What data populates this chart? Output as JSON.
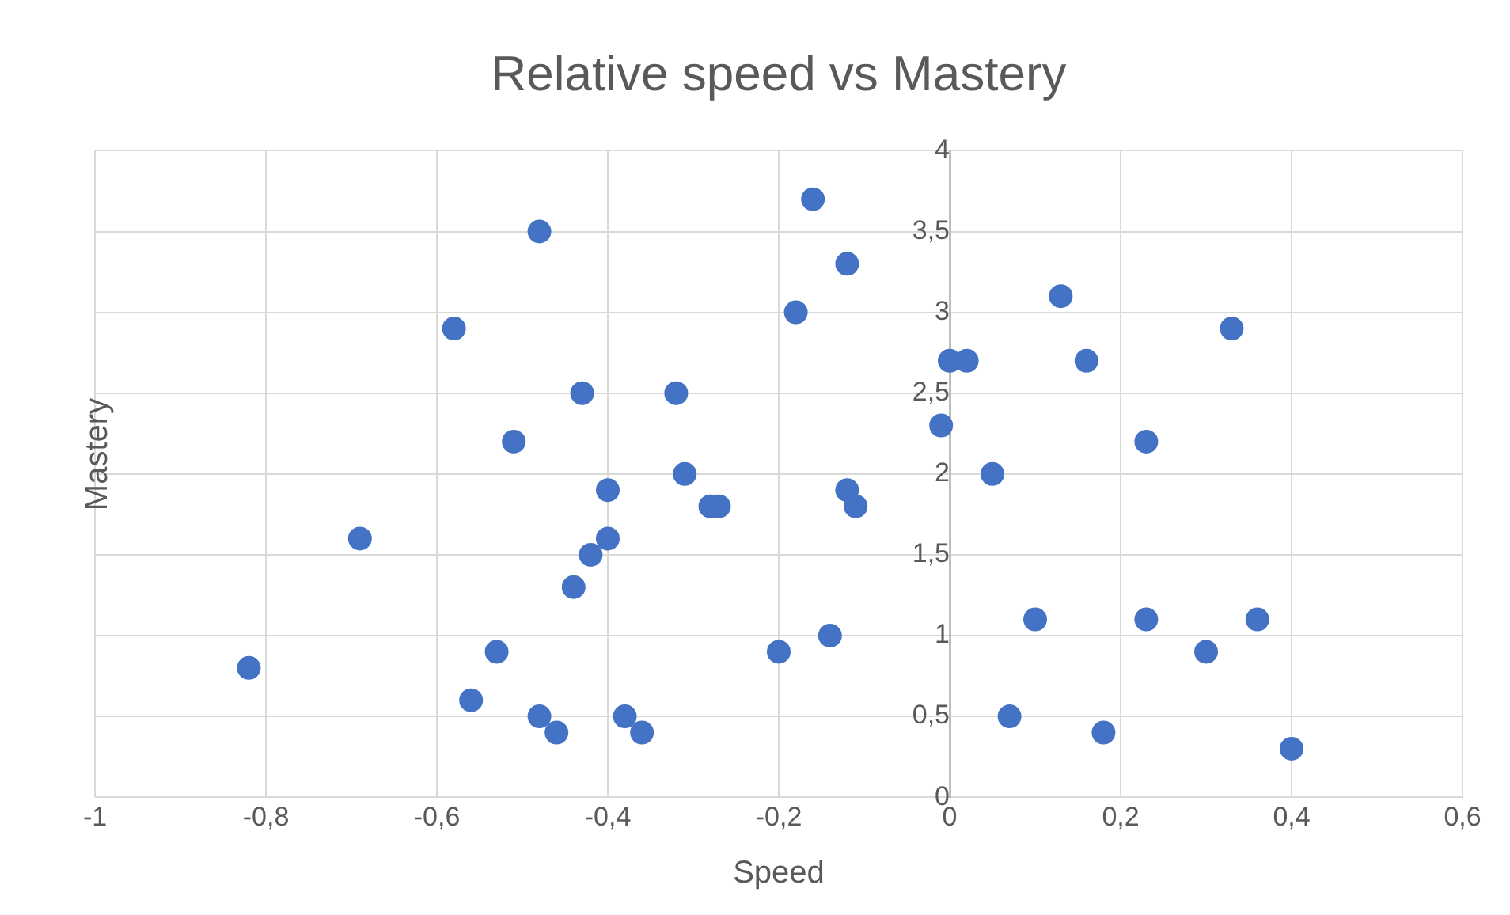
{
  "chart_data": {
    "type": "scatter",
    "title": "Relative speed vs Mastery",
    "xlabel": "Speed",
    "ylabel": "Mastery",
    "x": [
      -0.82,
      -0.69,
      -0.58,
      -0.48,
      -0.51,
      -0.56,
      -0.53,
      -0.48,
      -0.46,
      -0.44,
      -0.43,
      -0.42,
      -0.4,
      -0.4,
      -0.38,
      -0.36,
      -0.32,
      -0.31,
      -0.28,
      -0.27,
      -0.2,
      -0.18,
      -0.16,
      -0.14,
      -0.12,
      -0.12,
      -0.11,
      -0.01,
      0,
      0.02,
      0.05,
      0.07,
      0.1,
      0.13,
      0.16,
      0.18,
      0.23,
      0.23,
      0.3,
      0.33,
      0.36,
      0.4
    ],
    "series": [
      {
        "color": "#4472c4",
        "values": [
          0.8,
          1.6,
          2.9,
          3.5,
          2.2,
          0.6,
          0.9,
          0.5,
          0.4,
          1.3,
          2.5,
          1.5,
          1.9,
          1.6,
          0.5,
          0.4,
          2.5,
          2.0,
          1.8,
          1.8,
          0.9,
          3.0,
          3.7,
          1.0,
          3.3,
          1.9,
          1.8,
          2.3,
          2.7,
          2.7,
          2.0,
          0.5,
          1.1,
          3.1,
          2.7,
          0.4,
          2.2,
          1.1,
          0.9,
          2.9,
          1.1,
          0.3
        ]
      }
    ],
    "xlim": [
      -1,
      0.6
    ],
    "xticks": [
      -1,
      {
        "value": -0.8,
        "label": "-0,8"
      },
      {
        "value": -0.6,
        "label": "-0,6"
      },
      {
        "value": -0.4,
        "label": "-0,4"
      },
      {
        "value": -0.2,
        "label": "-0,2"
      },
      0,
      {
        "value": 0.2,
        "label": "0,2"
      },
      {
        "value": 0.4,
        "label": "0,4"
      },
      {
        "value": 0.6,
        "label": "0,6"
      }
    ],
    "ylim": [
      0,
      4
    ],
    "yticks": [
      0,
      {
        "value": 0.5,
        "label": "0,5"
      },
      1,
      {
        "value": 1.5,
        "label": "1,5"
      },
      2,
      {
        "value": 2.5,
        "label": "2,5"
      },
      3,
      {
        "value": 3.5,
        "label": "3,5"
      },
      4
    ],
    "grid": true,
    "legend": false,
    "marker": "circle"
  }
}
